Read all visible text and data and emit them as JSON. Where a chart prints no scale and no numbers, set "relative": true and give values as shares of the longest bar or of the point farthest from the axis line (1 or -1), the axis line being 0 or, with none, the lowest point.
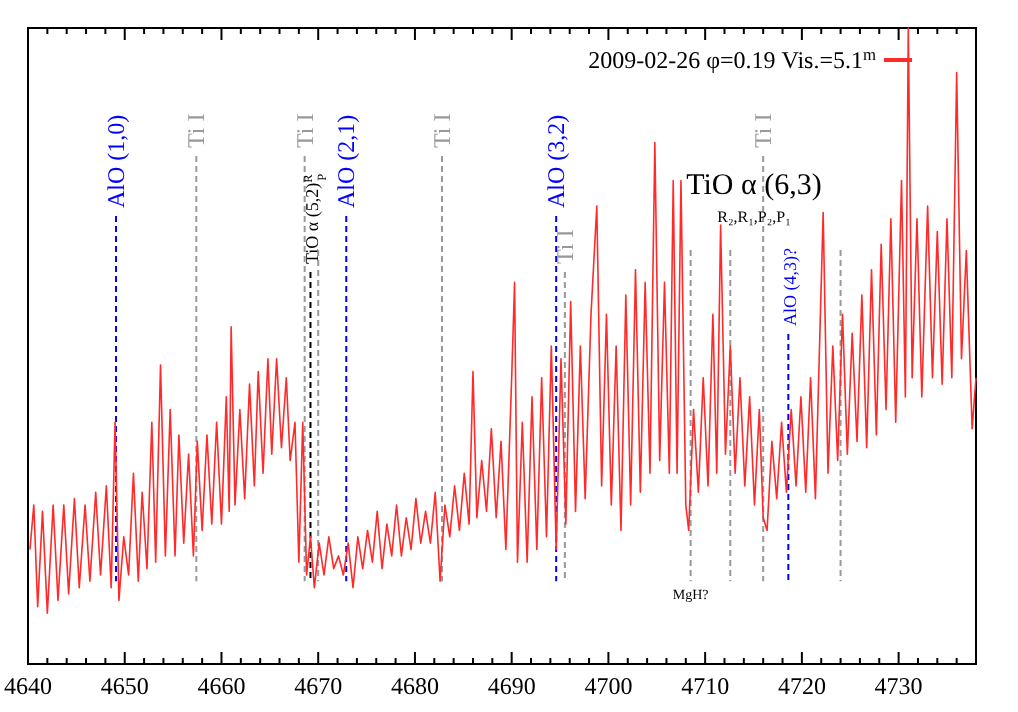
{
  "chart_data": {
    "type": "line",
    "relative": true,
    "legend": "top right",
    "xlim": [
      4640,
      4738
    ],
    "xticks": [
      4640,
      {
        "value": 4642,
        "label": null
      },
      {
        "value": 4644,
        "label": null
      },
      {
        "value": 4646,
        "label": null
      },
      {
        "value": 4648,
        "label": null
      },
      4650,
      {
        "value": 4652,
        "label": null
      },
      {
        "value": 4654,
        "label": null
      },
      {
        "value": 4656,
        "label": null
      },
      {
        "value": 4658,
        "label": null
      },
      4660,
      {
        "value": 4662,
        "label": null
      },
      {
        "value": 4664,
        "label": null
      },
      {
        "value": 4666,
        "label": null
      },
      {
        "value": 4668,
        "label": null
      },
      4670,
      {
        "value": 4672,
        "label": null
      },
      {
        "value": 4674,
        "label": null
      },
      {
        "value": 4676,
        "label": null
      },
      {
        "value": 4678,
        "label": null
      },
      4680,
      {
        "value": 4682,
        "label": null
      },
      {
        "value": 4684,
        "label": null
      },
      {
        "value": 4686,
        "label": null
      },
      {
        "value": 4688,
        "label": null
      },
      4690,
      {
        "value": 4692,
        "label": null
      },
      {
        "value": 4694,
        "label": null
      },
      {
        "value": 4696,
        "label": null
      },
      {
        "value": 4698,
        "label": null
      },
      4700,
      {
        "value": 4702,
        "label": null
      },
      {
        "value": 4704,
        "label": null
      },
      {
        "value": 4706,
        "label": null
      },
      {
        "value": 4708,
        "label": null
      },
      4710,
      {
        "value": 4712,
        "label": null
      },
      {
        "value": 4714,
        "label": null
      },
      {
        "value": 4716,
        "label": null
      },
      {
        "value": 4718,
        "label": null
      },
      4720,
      {
        "value": 4722,
        "label": null
      },
      {
        "value": 4724,
        "label": null
      },
      {
        "value": 4726,
        "label": null
      },
      {
        "value": 4728,
        "label": null
      },
      4730,
      {
        "value": 4732,
        "label": null
      },
      {
        "value": 4734,
        "label": null
      },
      {
        "value": 4736,
        "label": null
      }
    ],
    "series": [
      {
        "name": "2009-02-26 φ=0.19 Vis.=5.1$^{m}$",
        "color": "#ff2a2a",
        "x": [
          4640.2,
          4640.6,
          4641.0,
          4641.5,
          4642.0,
          4642.6,
          4643.1,
          4643.7,
          4644.2,
          4644.8,
          4645.3,
          4645.9,
          4646.4,
          4647.0,
          4647.5,
          4648.1,
          4648.6,
          4649.0,
          4649.4,
          4649.9,
          4650.4,
          4650.9,
          4651.4,
          4651.8,
          4652.3,
          4652.8,
          4653.2,
          4653.7,
          4654.2,
          4654.7,
          4655.2,
          4655.6,
          4656.1,
          4656.6,
          4657.1,
          4657.5,
          4658.0,
          4658.5,
          4659.0,
          4659.5,
          4660.0,
          4660.5,
          4660.8,
          4661.0,
          4661.4,
          4661.9,
          4662.4,
          4662.9,
          4663.4,
          4663.8,
          4664.3,
          4664.8,
          4665.2,
          4665.7,
          4666.2,
          4666.7,
          4667.1,
          4667.6,
          4668.0,
          4668.4,
          4668.8,
          4669.2,
          4669.6,
          4670.1,
          4670.6,
          4671.1,
          4671.6,
          4672.1,
          4672.6,
          4673.1,
          4673.6,
          4674.1,
          4674.6,
          4675.1,
          4675.6,
          4676.1,
          4676.6,
          4677.1,
          4677.6,
          4678.1,
          4678.6,
          4679.1,
          4679.6,
          4680.1,
          4680.6,
          4681.1,
          4681.6,
          4682.1,
          4682.6,
          4683.1,
          4683.6,
          4684.1,
          4684.6,
          4685.1,
          4685.6,
          4686.0,
          4686.4,
          4686.9,
          4687.4,
          4687.9,
          4688.4,
          4688.9,
          4689.4,
          4690.0,
          4690.3,
          4690.6,
          4691.1,
          4691.6,
          4692.1,
          4692.6,
          4693.1,
          4693.6,
          4694.1,
          4694.6,
          4695.1,
          4695.6,
          4696.1,
          4696.6,
          4697.1,
          4697.6,
          4698.2,
          4698.8,
          4699.3,
          4699.8,
          4700.3,
          4700.8,
          4701.3,
          4701.8,
          4702.3,
          4702.8,
          4703.3,
          4703.8,
          4704.3,
          4704.8,
          4705.3,
          4705.8,
          4706.3,
          4706.7,
          4707.1,
          4707.5,
          4708.0,
          4708.3,
          4708.8,
          4709.3,
          4709.8,
          4710.3,
          4710.8,
          4711.2,
          4711.6,
          4712.1,
          4712.6,
          4713.1,
          4713.6,
          4714.1,
          4714.6,
          4715.1,
          4715.6,
          4716.0,
          4716.4,
          4716.9,
          4717.4,
          4717.9,
          4718.4,
          4718.9,
          4719.4,
          4719.9,
          4720.4,
          4720.9,
          4721.4,
          4722.2,
          4722.7,
          4723.2,
          4723.7,
          4724.2,
          4724.7,
          4725.2,
          4725.7,
          4726.2,
          4726.7,
          4727.2,
          4727.7,
          4728.2,
          4728.7,
          4729.2,
          4729.7,
          4730.3,
          4730.7,
          4731.0,
          4731.4,
          4731.9,
          4732.4,
          4733.0,
          4733.5,
          4734.0,
          4734.5,
          4735.0,
          4735.5,
          4736.0,
          4736.5,
          4737.0,
          4737.6,
          4738.0
        ],
        "values": [
          0.18,
          0.25,
          0.09,
          0.24,
          0.08,
          0.25,
          0.1,
          0.25,
          0.11,
          0.26,
          0.12,
          0.25,
          0.13,
          0.27,
          0.14,
          0.28,
          0.12,
          0.38,
          0.1,
          0.2,
          0.14,
          0.3,
          0.13,
          0.27,
          0.15,
          0.38,
          0.16,
          0.47,
          0.17,
          0.4,
          0.17,
          0.36,
          0.19,
          0.33,
          0.17,
          0.35,
          0.21,
          0.36,
          0.22,
          0.38,
          0.22,
          0.42,
          0.24,
          0.53,
          0.25,
          0.4,
          0.26,
          0.44,
          0.28,
          0.46,
          0.3,
          0.48,
          0.33,
          0.48,
          0.34,
          0.45,
          0.32,
          0.38,
          0.16,
          0.38,
          0.14,
          0.2,
          0.12,
          0.19,
          0.14,
          0.2,
          0.15,
          0.17,
          0.14,
          0.19,
          0.12,
          0.2,
          0.15,
          0.21,
          0.16,
          0.24,
          0.15,
          0.22,
          0.17,
          0.25,
          0.17,
          0.23,
          0.18,
          0.26,
          0.19,
          0.24,
          0.19,
          0.27,
          0.13,
          0.25,
          0.2,
          0.28,
          0.21,
          0.3,
          0.22,
          0.46,
          0.23,
          0.32,
          0.24,
          0.37,
          0.23,
          0.35,
          0.18,
          0.45,
          0.6,
          0.16,
          0.38,
          0.16,
          0.42,
          0.18,
          0.45,
          0.2,
          0.5,
          0.18,
          0.48,
          0.22,
          0.57,
          0.24,
          0.5,
          0.26,
          0.55,
          0.72,
          0.28,
          0.55,
          0.25,
          0.5,
          0.21,
          0.58,
          0.25,
          0.62,
          0.27,
          0.6,
          0.3,
          0.82,
          0.32,
          0.6,
          0.3,
          0.76,
          0.3,
          0.76,
          0.25,
          0.21,
          0.4,
          0.27,
          0.45,
          0.28,
          0.55,
          0.3,
          0.69,
          0.33,
          0.5,
          0.3,
          0.45,
          0.28,
          0.42,
          0.25,
          0.4,
          0.23,
          0.21,
          0.35,
          0.26,
          0.38,
          0.27,
          0.4,
          0.28,
          0.42,
          0.27,
          0.45,
          0.26,
          0.71,
          0.3,
          0.5,
          0.32,
          0.55,
          0.33,
          0.52,
          0.35,
          0.58,
          0.34,
          0.62,
          0.36,
          0.66,
          0.4,
          0.7,
          0.38,
          0.76,
          0.42,
          1.0,
          0.45,
          0.7,
          0.42,
          0.72,
          0.45,
          0.68,
          0.44,
          0.7,
          0.45,
          0.93,
          0.48,
          0.65,
          0.37,
          0.45
        ]
      }
    ],
    "ref_lines": [
      {
        "axis": "x",
        "value": 4649.1,
        "label": "AlO (1,0)",
        "color": "#0000ff",
        "line_style": "dashed"
      },
      {
        "axis": "x",
        "value": 4657.4,
        "label": "Ti I",
        "color": "#999999",
        "line_style": "dashed"
      },
      {
        "axis": "x",
        "value": 4668.6,
        "label": "Ti I",
        "color": "#999999",
        "line_style": "dashed"
      },
      {
        "axis": "x",
        "value": 4669.2,
        "label": "TiO α (5,2)$^{R}$$_{P}$",
        "color": "#000000",
        "line_style": "dashed"
      },
      {
        "axis": "x",
        "value": 4670.0,
        "label": null,
        "color": "#999999",
        "line_style": "dashed"
      },
      {
        "axis": "x",
        "value": 4672.9,
        "label": "AlO (2,1)",
        "color": "#0000ff",
        "line_style": "dashed"
      },
      {
        "axis": "x",
        "value": 4682.8,
        "label": "Ti I",
        "color": "#999999",
        "line_style": "dashed"
      },
      {
        "axis": "x",
        "value": 4694.6,
        "label": "AlO (3,2)",
        "color": "#0000ff",
        "line_style": "dashed"
      },
      {
        "axis": "x",
        "value": 4695.5,
        "label": "Ti I",
        "color": "#999999",
        "line_style": "dashed"
      },
      {
        "axis": "x",
        "value": 4708.5,
        "label": null,
        "color": "#999999",
        "line_style": "dashed"
      },
      {
        "axis": "x",
        "value": 4712.6,
        "label": null,
        "color": "#999999",
        "line_style": "dashed"
      },
      {
        "axis": "x",
        "value": 4716.0,
        "label": "Ti I",
        "color": "#999999",
        "line_style": "dashed"
      },
      {
        "axis": "x",
        "value": 4718.6,
        "label": "AlO (4,3)?",
        "color": "#0000ff",
        "line_style": "dashed"
      },
      {
        "axis": "x",
        "value": 4724.0,
        "label": null,
        "color": "#999999",
        "line_style": "dashed"
      }
    ],
    "annotations": [
      "TiO α (6,3)",
      "R₂,R₁,P₂,P₁",
      {
        "text": "MgH?",
        "x": 4708.5,
        "y": 0.13
      }
    ]
  }
}
